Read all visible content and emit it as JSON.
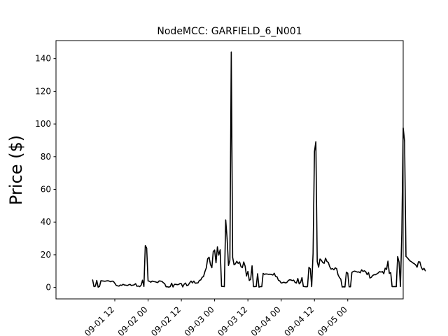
{
  "chart_data": {
    "type": "line",
    "title": "NodeMCC: GARFIELD_6_N001",
    "ylabel": "Price ($)",
    "xlabel": "",
    "xlim_hours": [
      -9.2,
      116.0
    ],
    "ylim": [
      -7,
      151
    ],
    "y_ticks": [
      0,
      20,
      40,
      60,
      80,
      100,
      120,
      140
    ],
    "x_ticks": [
      {
        "hour": 12,
        "label": "09-01 12"
      },
      {
        "hour": 24,
        "label": "09-02 00"
      },
      {
        "hour": 36,
        "label": "09-02 12"
      },
      {
        "hour": 48,
        "label": "09-03 00"
      },
      {
        "hour": 60,
        "label": "09-03 12"
      },
      {
        "hour": 72,
        "label": "09-04 00"
      },
      {
        "hour": 84,
        "label": "09-04 12"
      },
      {
        "hour": 96,
        "label": "09-05 00"
      }
    ],
    "line_color": "#000000",
    "grid": false,
    "series": [
      {
        "x_start_hour": 4,
        "x_step_hour": 0.5,
        "values": [
          4.7,
          0.5,
          0.8,
          4.3,
          0.2,
          0.6,
          4.1,
          4.0,
          3.9,
          3.8,
          4.0,
          4.1,
          3.9,
          3.5,
          3.9,
          3.7,
          2.6,
          1.3,
          1.0,
          0.8,
          1.5,
          1.3,
          1.9,
          1.5,
          1.4,
          1.2,
          1.6,
          1.9,
          1.2,
          1.4,
          1.6,
          2.3,
          0.7,
          0.9,
          0.5,
          1.4,
          4.4,
          0.6,
          25.6,
          24.1,
          4.0,
          3.8,
          3.2,
          3.9,
          3.6,
          3.5,
          3.2,
          3.0,
          4.0,
          3.9,
          3.7,
          2.9,
          2.3,
          0.4,
          0.4,
          0.2,
          0.5,
          2.6,
          0.3,
          1.9,
          1.9,
          1.7,
          1.8,
          2.4,
          2.3,
          0.3,
          2.0,
          2.7,
          1.1,
          1.5,
          2.8,
          3.9,
          2.8,
          3.9,
          2.6,
          2.7,
          2.8,
          4.3,
          4.6,
          6.2,
          6.7,
          9.7,
          12.0,
          17.6,
          18.5,
          14.0,
          12.1,
          21.9,
          22.9,
          15.1,
          24.8,
          19.8,
          23.0,
          0.7,
          0.6,
          0.5,
          41.3,
          30.0,
          13.5,
          16.6,
          144.0,
          18.4,
          13.9,
          14.5,
          16.0,
          14.7,
          15.6,
          12.8,
          12.1,
          15.6,
          13.0,
          7.0,
          9.8,
          4.3,
          5.0,
          13.2,
          0.5,
          0.5,
          0.6,
          8.4,
          0.2,
          0.5,
          0.5,
          8.6,
          8.0,
          8.3,
          8.2,
          8.0,
          8.1,
          7.9,
          7.6,
          8.7,
          6.7,
          6.5,
          4.4,
          4.0,
          2.7,
          2.9,
          3.2,
          2.8,
          3.0,
          4.1,
          4.7,
          4.6,
          4.2,
          4.5,
          3.1,
          2.7,
          5.5,
          2.2,
          3.1,
          6.0,
          0.6,
          0.5,
          0.4,
          0.5,
          12.3,
          11.4,
          0.5,
          20.8,
          83.2,
          89.1,
          15.8,
          12.4,
          17.4,
          16.6,
          15.2,
          14.8,
          17.9,
          15.9,
          15.3,
          12.7,
          11.2,
          11.6,
          10.8,
          12.0,
          11.5,
          7.8,
          6.1,
          5.1,
          0.3,
          0.4,
          0.3,
          9.3,
          8.7,
          0.4,
          0.4,
          9.2,
          9.8,
          10.0,
          9.7,
          9.4,
          9.5,
          9.0,
          10.8,
          9.8,
          10.2,
          9.6,
          7.8,
          9.1,
          5.8,
          6.2,
          7.3,
          7.8,
          7.8,
          8.3,
          8.9,
          9.7,
          9.4,
          9.7,
          8.4,
          11.8,
          11.0,
          16.1,
          8.6,
          9.1,
          0.5,
          0.5,
          0.5,
          0.5,
          18.9,
          15.6,
          0.6,
          33.3,
          97.5,
          89.5,
          19.0,
          18.2,
          17.1,
          16.2,
          15.7,
          15.0,
          14.5,
          13.8,
          12.4,
          15.7,
          15.6,
          12.5,
          10.8,
          11.7,
          10.1
        ]
      }
    ]
  }
}
